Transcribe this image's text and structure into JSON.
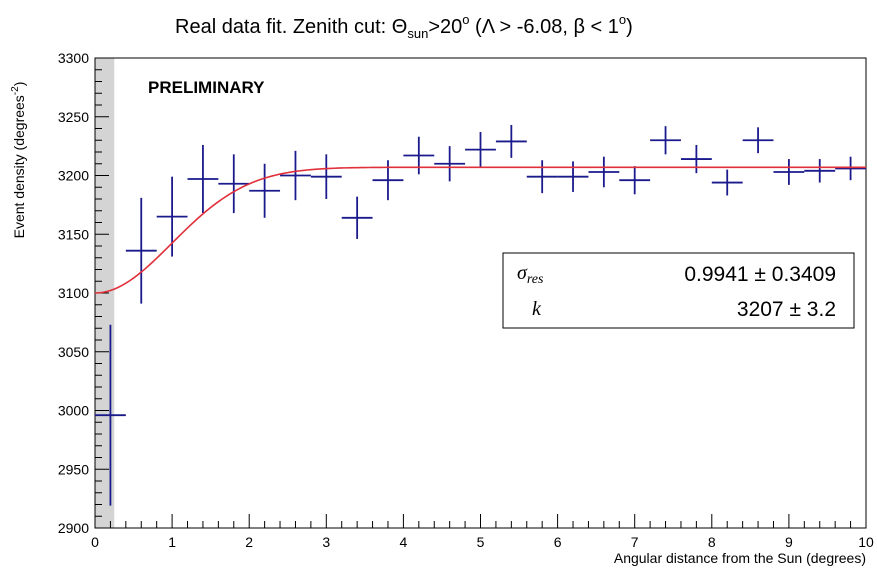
{
  "chart_data": {
    "type": "scatter",
    "title": {
      "prefix": "Real data fit. Zenith cut: ",
      "theta": "Θ",
      "theta_sub": "sun",
      "cut": ">20",
      "deg": "o",
      "open": " (",
      "lambda": "Λ",
      "lambda_cond": " > -6.08, ",
      "beta": "β",
      "beta_cond": " < 1",
      "close": ")"
    },
    "xlabel": "Angular distance from the Sun (degrees)",
    "ylabel": {
      "main": "Event density (degrees",
      "sup": "-2",
      "end": ")"
    },
    "xlim": [
      0,
      10
    ],
    "ylim": [
      2900,
      3300
    ],
    "x_ticks": [
      "0",
      "1",
      "2",
      "3",
      "4",
      "5",
      "6",
      "7",
      "8",
      "9",
      "10"
    ],
    "y_ticks": [
      "2900",
      "2950",
      "3000",
      "3050",
      "3100",
      "3150",
      "3200",
      "3250",
      "3300"
    ],
    "annotation": "PRELIMINARY",
    "shaded_region": [
      0,
      0.25
    ],
    "marker_color": "#1a1a8c",
    "fit_color": "#e0303a",
    "bin_half_width": 0.2,
    "points": [
      {
        "x": 0.2,
        "y": 2996,
        "yerr": 77
      },
      {
        "x": 0.6,
        "y": 3136,
        "yerr": 45
      },
      {
        "x": 1.0,
        "y": 3165,
        "yerr": 34
      },
      {
        "x": 1.4,
        "y": 3197,
        "yerr": 29
      },
      {
        "x": 1.8,
        "y": 3193,
        "yerr": 25
      },
      {
        "x": 2.2,
        "y": 3187,
        "yerr": 23
      },
      {
        "x": 2.6,
        "y": 3200,
        "yerr": 21
      },
      {
        "x": 3.0,
        "y": 3199,
        "yerr": 19
      },
      {
        "x": 3.4,
        "y": 3164,
        "yerr": 18
      },
      {
        "x": 3.8,
        "y": 3196,
        "yerr": 17
      },
      {
        "x": 4.2,
        "y": 3217,
        "yerr": 16
      },
      {
        "x": 4.6,
        "y": 3210,
        "yerr": 15
      },
      {
        "x": 5.0,
        "y": 3222,
        "yerr": 15
      },
      {
        "x": 5.4,
        "y": 3229,
        "yerr": 14
      },
      {
        "x": 5.8,
        "y": 3199,
        "yerr": 14
      },
      {
        "x": 6.2,
        "y": 3199,
        "yerr": 13
      },
      {
        "x": 6.6,
        "y": 3203,
        "yerr": 13
      },
      {
        "x": 7.0,
        "y": 3196,
        "yerr": 12
      },
      {
        "x": 7.4,
        "y": 3230,
        "yerr": 12
      },
      {
        "x": 7.8,
        "y": 3214,
        "yerr": 12
      },
      {
        "x": 8.2,
        "y": 3194,
        "yerr": 11
      },
      {
        "x": 8.6,
        "y": 3230,
        "yerr": 11
      },
      {
        "x": 9.0,
        "y": 3203,
        "yerr": 11
      },
      {
        "x": 9.4,
        "y": 3204,
        "yerr": 10
      },
      {
        "x": 9.8,
        "y": 3206,
        "yerr": 10
      }
    ],
    "fit": {
      "sigma_res": 0.9941,
      "sigma_res_err": 0.3409,
      "k": 3207,
      "k_err": 3.2,
      "row1_sym": "σ",
      "row1_sub": "res",
      "row1_val": "0.9941 ± 0.3409",
      "row2_sym": "k",
      "row2_val": "3207 ± 3.2"
    }
  }
}
